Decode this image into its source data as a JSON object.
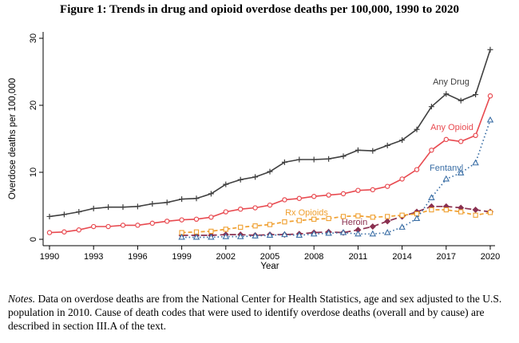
{
  "title": "Figure 1: Trends in drug and opioid overdose deaths per 100,000, 1990 to 2020",
  "notes": {
    "lead": "Notes.",
    "text": " Data on overdose deaths are from the National Center for Health Statistics, age and sex adjusted to the U.S. population in 2010. Cause of death codes that were used to identify overdose deaths (overall and by cause) are described in section III.A of the text."
  },
  "chart_data": {
    "type": "line",
    "xlabel": "Year",
    "ylabel": "Overdose deaths per 100,000",
    "xlim": [
      1990,
      2020
    ],
    "ylim": [
      0,
      30
    ],
    "xticks": [
      1990,
      1993,
      1996,
      1999,
      2002,
      2005,
      2008,
      2011,
      2014,
      2017,
      2020
    ],
    "yticks": [
      0,
      10,
      20,
      30
    ],
    "grid": false,
    "legend": "inline labels",
    "series": [
      {
        "name": "Any Drug",
        "color": "#404040",
        "marker": "plus",
        "dash": "solid",
        "x": [
          1990,
          1991,
          1992,
          1993,
          1994,
          1995,
          1996,
          1997,
          1998,
          1999,
          2000,
          2001,
          2002,
          2003,
          2004,
          2005,
          2006,
          2007,
          2008,
          2009,
          2010,
          2011,
          2012,
          2013,
          2014,
          2015,
          2016,
          2017,
          2018,
          2019,
          2020
        ],
        "y": [
          3.4,
          3.7,
          4.1,
          4.6,
          4.8,
          4.8,
          4.9,
          5.3,
          5.5,
          6.0,
          6.1,
          6.8,
          8.2,
          8.9,
          9.3,
          10.1,
          11.5,
          11.9,
          11.9,
          12.0,
          12.4,
          13.3,
          13.2,
          14.0,
          14.8,
          16.4,
          19.8,
          21.7,
          20.7,
          21.6,
          28.3
        ]
      },
      {
        "name": "Any Opioid",
        "color": "#e84a50",
        "marker": "circle",
        "dash": "solid",
        "x": [
          1990,
          1991,
          1992,
          1993,
          1994,
          1995,
          1996,
          1997,
          1998,
          1999,
          2000,
          2001,
          2002,
          2003,
          2004,
          2005,
          2006,
          2007,
          2008,
          2009,
          2010,
          2011,
          2012,
          2013,
          2014,
          2015,
          2016,
          2017,
          2018,
          2019,
          2020
        ],
        "y": [
          1.0,
          1.1,
          1.4,
          1.9,
          1.9,
          2.1,
          2.1,
          2.4,
          2.7,
          2.9,
          3.0,
          3.3,
          4.1,
          4.5,
          4.7,
          5.1,
          5.9,
          6.1,
          6.4,
          6.6,
          6.8,
          7.3,
          7.4,
          7.9,
          9.0,
          10.4,
          13.3,
          14.9,
          14.6,
          15.5,
          21.4
        ]
      },
      {
        "name": "Fentanyl",
        "color": "#3a6ea5",
        "marker": "triangle",
        "dash": "dotted",
        "x": [
          1999,
          2000,
          2001,
          2002,
          2003,
          2004,
          2005,
          2006,
          2007,
          2008,
          2009,
          2010,
          2011,
          2012,
          2013,
          2014,
          2015,
          2016,
          2017,
          2018,
          2019,
          2020
        ],
        "y": [
          0.3,
          0.3,
          0.3,
          0.4,
          0.4,
          0.5,
          0.6,
          0.7,
          0.6,
          0.8,
          0.9,
          1.0,
          0.8,
          0.8,
          1.0,
          1.8,
          3.1,
          6.2,
          9.0,
          9.9,
          11.4,
          17.8
        ]
      },
      {
        "name": "Rx Opioids",
        "color": "#f0a030",
        "marker": "square",
        "dash": "dashed",
        "x": [
          1999,
          2000,
          2001,
          2002,
          2003,
          2004,
          2005,
          2006,
          2007,
          2008,
          2009,
          2010,
          2011,
          2012,
          2013,
          2014,
          2015,
          2016,
          2017,
          2018,
          2019,
          2020
        ],
        "y": [
          1.0,
          1.1,
          1.2,
          1.5,
          1.8,
          2.0,
          2.2,
          2.6,
          2.8,
          3.0,
          3.1,
          3.4,
          3.5,
          3.3,
          3.4,
          3.6,
          3.8,
          4.4,
          4.4,
          4.1,
          3.6,
          4.0
        ]
      },
      {
        "name": "Heroin",
        "color": "#8a3050",
        "marker": "diamond",
        "dash": "longdash",
        "x": [
          1999,
          2000,
          2001,
          2002,
          2003,
          2004,
          2005,
          2006,
          2007,
          2008,
          2009,
          2010,
          2011,
          2012,
          2013,
          2014,
          2015,
          2016,
          2017,
          2018,
          2019,
          2020
        ],
        "y": [
          0.6,
          0.6,
          0.6,
          0.7,
          0.7,
          0.6,
          0.7,
          0.7,
          0.8,
          1.0,
          1.1,
          1.0,
          1.4,
          1.9,
          2.7,
          3.4,
          4.1,
          4.9,
          4.9,
          4.7,
          4.4,
          4.1
        ]
      }
    ]
  }
}
